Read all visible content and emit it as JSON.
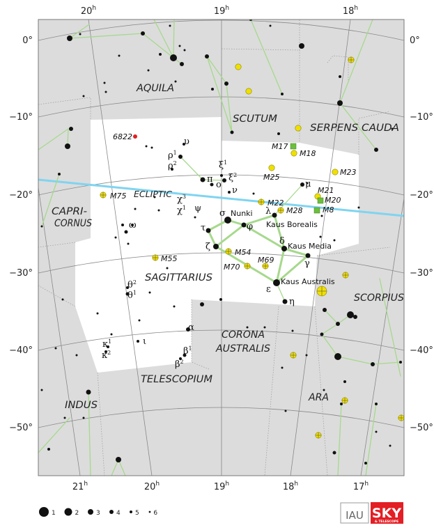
{
  "colors": {
    "background": "#dcdcdc",
    "highlight": "#ffffff",
    "ecliptic": "#7fd4f0",
    "lines": "#a6d98c",
    "globular": "#f0e000",
    "nebula": "#6cbf3c",
    "galaxy": "#e02020"
  },
  "ra_top": [
    {
      "h": "20",
      "u": "h"
    },
    {
      "h": "19",
      "u": "h"
    },
    {
      "h": "18",
      "u": "h"
    }
  ],
  "ra_bottom": [
    {
      "h": "21",
      "u": "h"
    },
    {
      "h": "20",
      "u": "h"
    },
    {
      "h": "19",
      "u": "h"
    },
    {
      "h": "18",
      "u": "h"
    },
    {
      "h": "17",
      "u": "h"
    }
  ],
  "dec": [
    "0°",
    "−10°",
    "−20°",
    "−30°",
    "−40°",
    "−50°"
  ],
  "constellations": [
    "AQUILA",
    "SCUTUM",
    "SERPENS CAUDA",
    "CAPRI-",
    "CORNUS",
    "SAGITTARIUS",
    "CORONA",
    "AUSTRALIS",
    "SCORPIUS",
    "TELESCOPIUM",
    "INDUS",
    "ARA"
  ],
  "ecliptic_label": "ECLIPTIC",
  "objects": [
    "6822",
    "M75",
    "M55",
    "M54",
    "M70",
    "M69",
    "M22",
    "M28",
    "M25",
    "M17",
    "M18",
    "M23",
    "M21",
    "M20",
    "M8"
  ],
  "star_names": [
    "Nunki",
    "Kaus Borealis",
    "Kaus Media",
    "Kaus Australis"
  ],
  "greek": [
    {
      "g": "υ",
      "s": ""
    },
    {
      "g": "ρ",
      "s": "1"
    },
    {
      "g": "ρ",
      "s": "2"
    },
    {
      "g": "π",
      "s": ""
    },
    {
      "g": "ο",
      "s": ""
    },
    {
      "g": "ξ",
      "s": "1"
    },
    {
      "g": "ξ",
      "s": "2"
    },
    {
      "g": "ν",
      "s": ""
    },
    {
      "g": "μ",
      "s": ""
    },
    {
      "g": "χ",
      "s": "3"
    },
    {
      "g": "χ",
      "s": "1"
    },
    {
      "g": "ψ",
      "s": ""
    },
    {
      "g": "σ",
      "s": ""
    },
    {
      "g": "τ",
      "s": ""
    },
    {
      "g": "φ",
      "s": ""
    },
    {
      "g": "λ",
      "s": ""
    },
    {
      "g": "δ",
      "s": ""
    },
    {
      "g": "ζ",
      "s": ""
    },
    {
      "g": "γ",
      "s": ""
    },
    {
      "g": "ε",
      "s": ""
    },
    {
      "g": "η",
      "s": ""
    },
    {
      "g": "ω",
      "s": ""
    },
    {
      "g": "θ",
      "s": "2"
    },
    {
      "g": "θ",
      "s": "1"
    },
    {
      "g": "α",
      "s": ""
    },
    {
      "g": "β",
      "s": "1"
    },
    {
      "g": "β",
      "s": "2"
    },
    {
      "g": "ι",
      "s": ""
    },
    {
      "g": "κ",
      "s": "1"
    },
    {
      "g": "κ",
      "s": "2"
    }
  ],
  "legend": {
    "magnitudes": [
      "1",
      "2",
      "3",
      "4",
      "5",
      "6"
    ]
  },
  "logos": {
    "iau": "IAU",
    "sky": "SKY",
    "sky_sub": "& TELESCOPE"
  }
}
